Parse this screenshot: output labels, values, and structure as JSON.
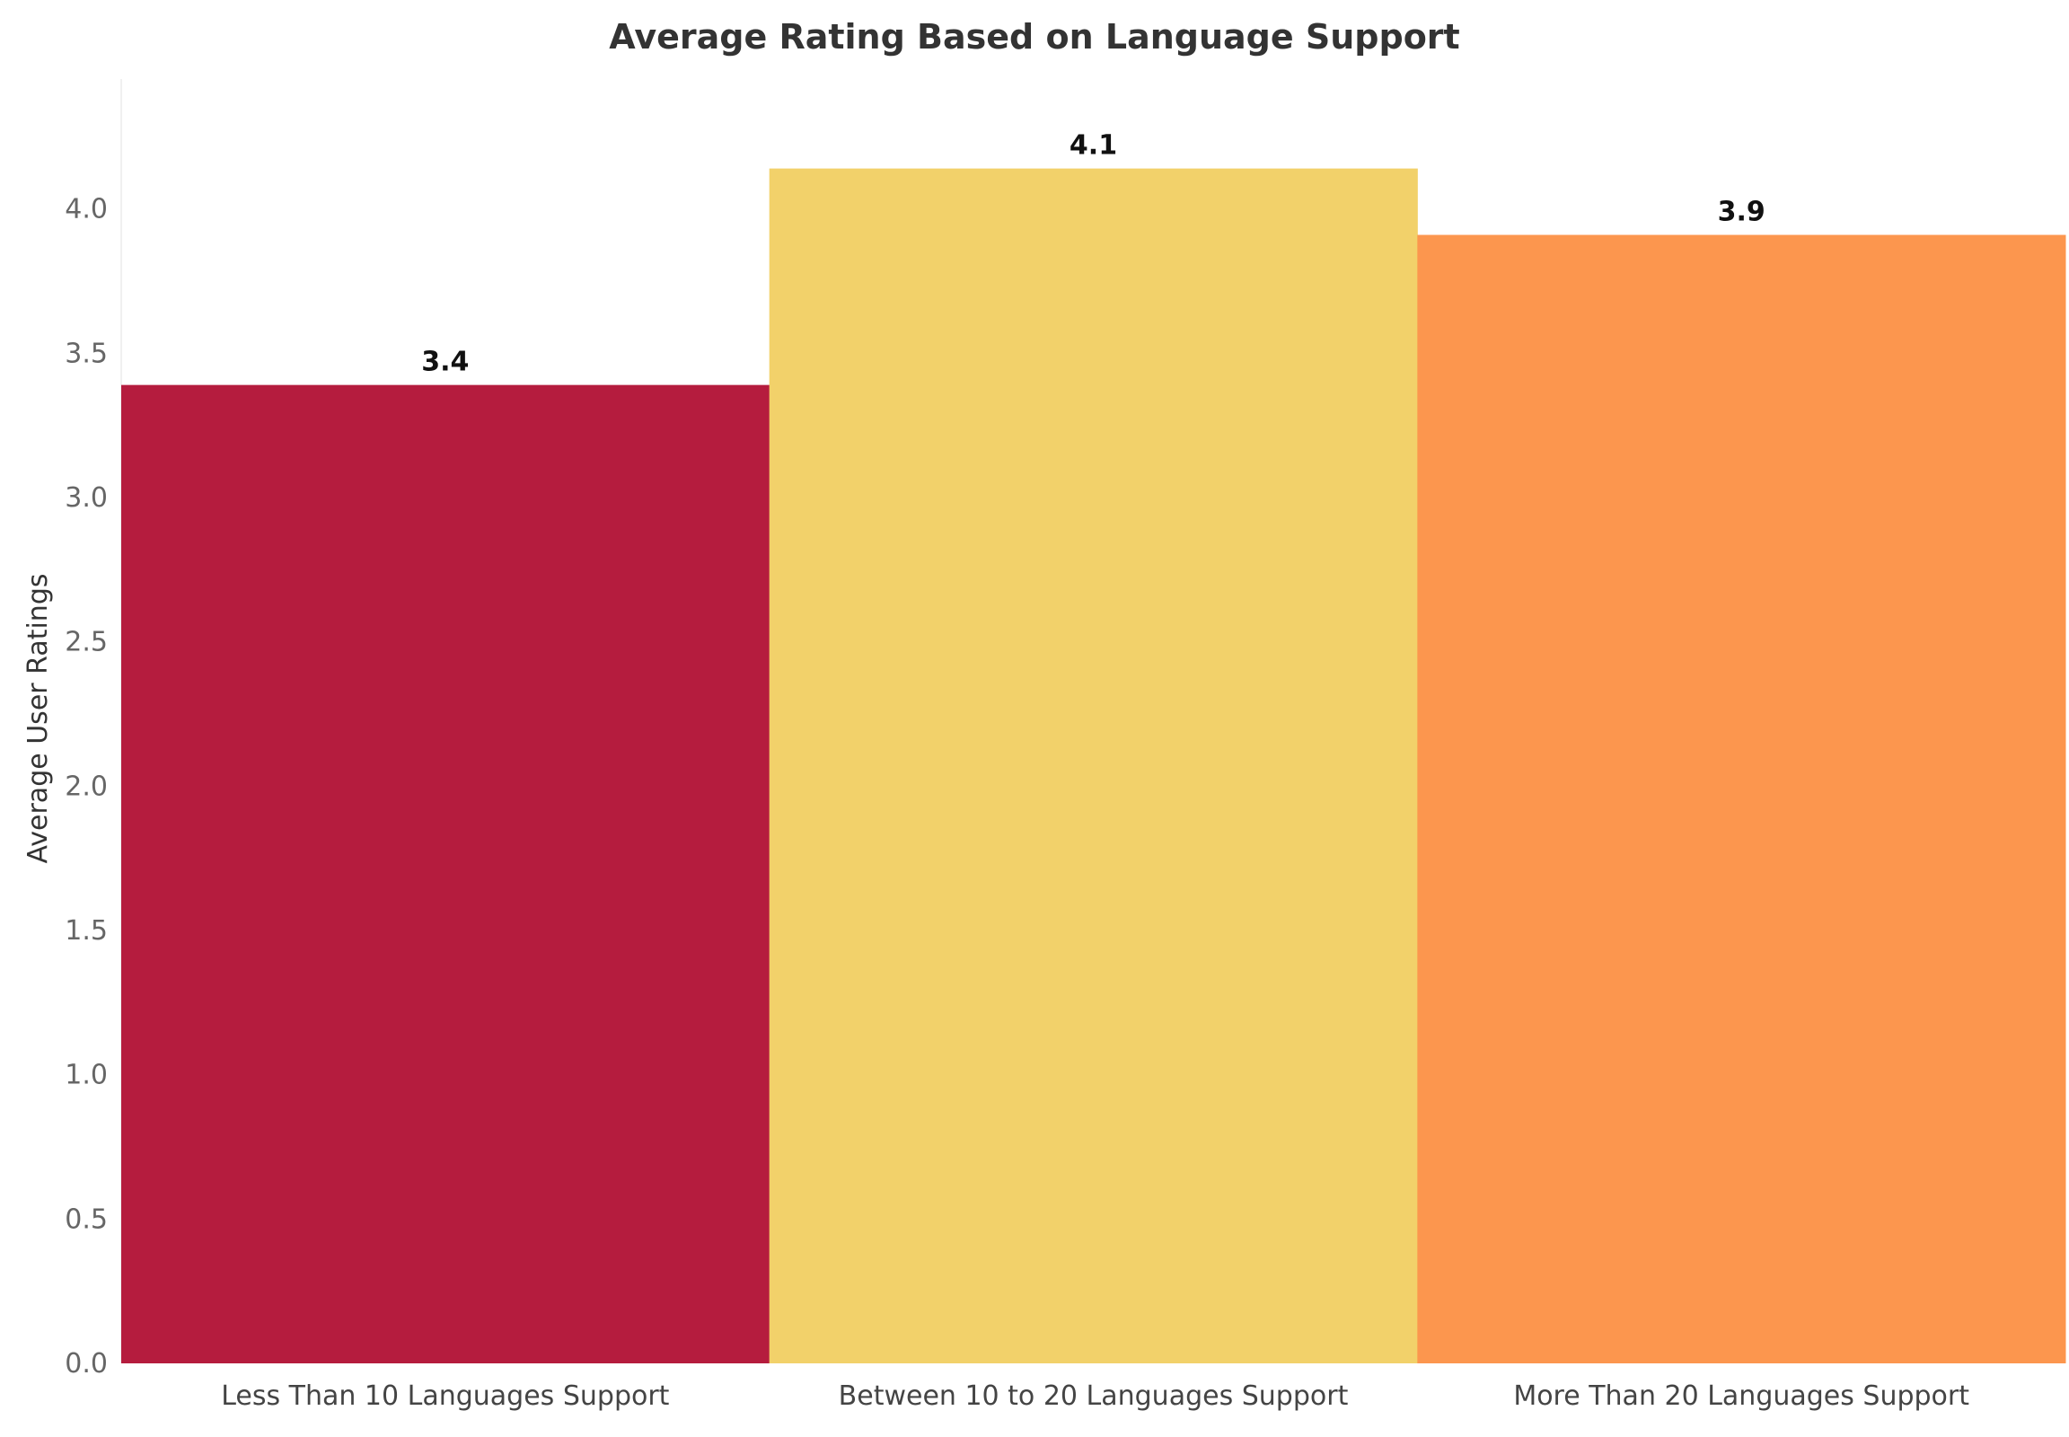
{
  "chart_data": {
    "type": "bar",
    "title": "Average Rating Based on Language Support",
    "xlabel": "",
    "ylabel": "Average User Ratings",
    "categories": [
      "Less Than 10 Languages Support",
      "Between 10 to 20 Languages Support",
      "More Than 20 Languages Support"
    ],
    "values": [
      3.39,
      4.14,
      3.91
    ],
    "data_labels": [
      "3.4",
      "4.1",
      "3.9"
    ],
    "colors": [
      "#b51c3e",
      "#f2d16a",
      "#fc964e"
    ],
    "ylim": [
      0,
      4.45
    ],
    "yticks": [
      0,
      0.5,
      1,
      1.5,
      2,
      2.5,
      3,
      3.5,
      4
    ],
    "ytick_labels": [
      "0.0",
      "0.5",
      "1.0",
      "1.5",
      "2.0",
      "2.5",
      "3.0",
      "3.5",
      "4.0"
    ],
    "grid": false,
    "legend": "none"
  }
}
